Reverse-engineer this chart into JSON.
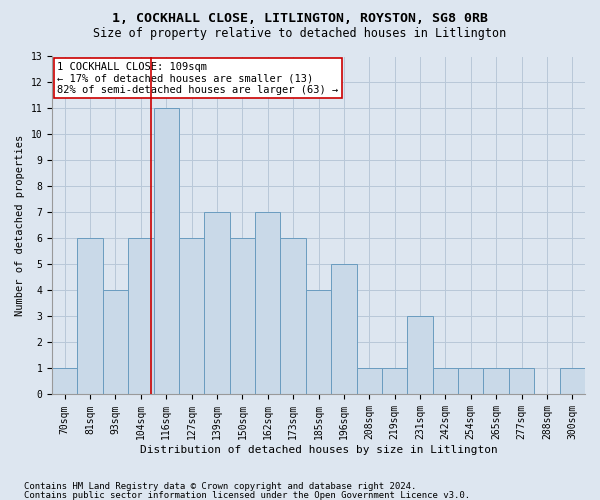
{
  "title": "1, COCKHALL CLOSE, LITLINGTON, ROYSTON, SG8 0RB",
  "subtitle": "Size of property relative to detached houses in Litlington",
  "xlabel": "Distribution of detached houses by size in Litlington",
  "ylabel": "Number of detached properties",
  "categories": [
    "70sqm",
    "81sqm",
    "93sqm",
    "104sqm",
    "116sqm",
    "127sqm",
    "139sqm",
    "150sqm",
    "162sqm",
    "173sqm",
    "185sqm",
    "196sqm",
    "208sqm",
    "219sqm",
    "231sqm",
    "242sqm",
    "254sqm",
    "265sqm",
    "277sqm",
    "288sqm",
    "300sqm"
  ],
  "values": [
    1,
    6,
    4,
    6,
    11,
    6,
    7,
    6,
    7,
    6,
    4,
    5,
    1,
    1,
    3,
    1,
    1,
    1,
    1,
    0,
    1
  ],
  "bar_color": "#c9d9e8",
  "bar_edge_color": "#6a9cbf",
  "bar_edge_width": 0.7,
  "grid_color": "#b8c8d8",
  "background_color": "#dde6f0",
  "property_line_color": "#cc0000",
  "annotation_text": "1 COCKHALL CLOSE: 109sqm\n← 17% of detached houses are smaller (13)\n82% of semi-detached houses are larger (63) →",
  "annotation_box_color": "white",
  "annotation_box_edge": "#cc0000",
  "footer_line1": "Contains HM Land Registry data © Crown copyright and database right 2024.",
  "footer_line2": "Contains public sector information licensed under the Open Government Licence v3.0.",
  "ylim": [
    0,
    13
  ],
  "yticks": [
    0,
    1,
    2,
    3,
    4,
    5,
    6,
    7,
    8,
    9,
    10,
    11,
    12,
    13
  ],
  "title_fontsize": 9.5,
  "subtitle_fontsize": 8.5,
  "xlabel_fontsize": 8,
  "ylabel_fontsize": 7.5,
  "tick_fontsize": 7,
  "annotation_fontsize": 7.5,
  "footer_fontsize": 6.5
}
